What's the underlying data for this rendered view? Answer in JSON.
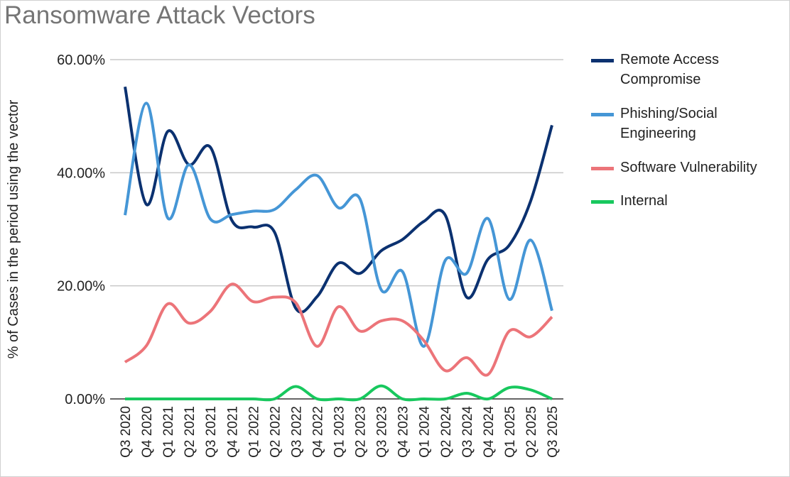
{
  "chart_data": {
    "type": "line",
    "title": "Ransomware Attack Vectors",
    "xlabel": "",
    "ylabel": "% of Cases in the period using the vector",
    "ylim": [
      0,
      60
    ],
    "yticks": [
      "0.00%",
      "20.00%",
      "40.00%",
      "60.00%"
    ],
    "grid": true,
    "legend_position": "right",
    "smooth": true,
    "categories": [
      "Q3 2020",
      "Q4 2020",
      "Q1 2021",
      "Q2 2021",
      "Q3 2021",
      "Q4 2021",
      "Q1 2022",
      "Q2 2022",
      "Q3 2022",
      "Q4 2022",
      "Q1 2023",
      "Q2 2023",
      "Q3 2023",
      "Q4 2023",
      "Q1 2024",
      "Q2 2024",
      "Q3 2024",
      "Q4 2024",
      "Q1 2025",
      "Q2 2025",
      "Q3 2025"
    ],
    "series": [
      {
        "name": "Remote Access Compromise",
        "color": "#0b3170",
        "values": [
          55.2,
          34.4,
          47.3,
          41.4,
          44.5,
          31.6,
          30.4,
          29.5,
          16.0,
          18.1,
          24.0,
          22.2,
          26.2,
          28.2,
          31.4,
          32.5,
          18.0,
          24.7,
          27.2,
          35.0,
          48.4
        ]
      },
      {
        "name": "Phishing/Social Engineering",
        "color": "#4596d6",
        "values": [
          32.5,
          52.3,
          32.0,
          41.4,
          31.8,
          32.6,
          33.2,
          33.5,
          37.0,
          39.5,
          33.8,
          35.4,
          19.3,
          22.5,
          9.3,
          24.5,
          22.2,
          31.9,
          17.6,
          28.1,
          15.6
        ]
      },
      {
        "name": "Software Vulnerability",
        "color": "#ec7479",
        "values": [
          6.5,
          9.4,
          16.8,
          13.4,
          15.5,
          20.3,
          17.2,
          18.0,
          17.0,
          9.3,
          16.3,
          12.0,
          13.8,
          13.8,
          10.3,
          5.0,
          7.3,
          4.3,
          12.0,
          11.0,
          14.5
        ]
      },
      {
        "name": "Internal",
        "color": "#18c85e",
        "values": [
          0,
          0,
          0,
          0,
          0,
          0,
          0,
          0,
          2.2,
          0,
          0,
          0,
          2.3,
          0,
          0,
          0,
          1.0,
          0,
          2.0,
          1.6,
          0
        ]
      }
    ]
  }
}
